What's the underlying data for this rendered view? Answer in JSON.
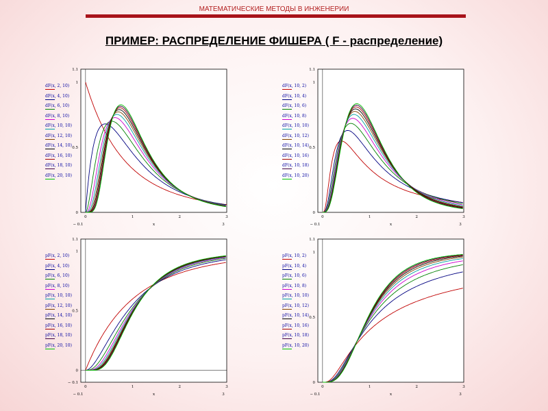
{
  "header": {
    "text": "МАТЕМАТИЧЕСКИЕ МЕТОДЫ В ИНЖЕНЕРИИ"
  },
  "title": {
    "text": "ПРИМЕР: РАСПРЕДЕЛЕНИЕ ФИШЕРА ( F - распределение)"
  },
  "colors": [
    "#c00000",
    "#000080",
    "#008000",
    "#cc00cc",
    "#00a0a0",
    "#804000",
    "#000000",
    "#a00000",
    "#400040",
    "#00c000"
  ],
  "chart_data": [
    {
      "type": "line",
      "function": "density",
      "x": [
        0,
        0.05,
        0.1,
        0.15,
        0.2,
        0.25,
        0.3,
        0.35,
        0.4,
        0.45,
        0.5,
        0.55,
        0.6,
        0.65,
        0.7,
        0.75,
        0.8,
        0.85,
        0.9,
        0.95,
        1,
        1.1,
        1.2,
        1.3,
        1.4,
        1.5,
        1.6,
        1.7,
        1.8,
        1.9,
        2,
        2.2,
        2.4,
        2.6,
        2.8,
        3
      ],
      "xlim": [
        -0.1,
        3
      ],
      "ylim": [
        0,
        1.1
      ],
      "x_ticks": [
        "0",
        "1",
        "2",
        "3"
      ],
      "x_tick_values": [
        0,
        1,
        2,
        3
      ],
      "x_extra": [
        "− 0.1",
        "x",
        "3"
      ],
      "y_ticks": [
        "1.1",
        "1",
        "0.5",
        "0"
      ],
      "y_tick_values": [
        1.1,
        1,
        0.5,
        0
      ],
      "series": [
        {
          "name": "dF(x, 2, 10)",
          "d1": 2,
          "d2": 10
        },
        {
          "name": "dF(x, 4, 10)",
          "d1": 4,
          "d2": 10
        },
        {
          "name": "dF(x, 6, 10)",
          "d1": 6,
          "d2": 10
        },
        {
          "name": "dF(x, 8, 10)",
          "d1": 8,
          "d2": 10
        },
        {
          "name": "dF(x, 10, 10)",
          "d1": 10,
          "d2": 10
        },
        {
          "name": "dF(x, 12, 10)",
          "d1": 12,
          "d2": 10
        },
        {
          "name": "dF(x, 14, 10)",
          "d1": 14,
          "d2": 10
        },
        {
          "name": "dF(x, 16, 10)",
          "d1": 16,
          "d2": 10
        },
        {
          "name": "dF(x, 18, 10)",
          "d1": 18,
          "d2": 10
        },
        {
          "name": "dF(x, 20, 10)",
          "d1": 20,
          "d2": 10
        }
      ]
    },
    {
      "type": "line",
      "function": "density",
      "x": [
        0,
        0.05,
        0.1,
        0.15,
        0.2,
        0.25,
        0.3,
        0.35,
        0.4,
        0.45,
        0.5,
        0.55,
        0.6,
        0.65,
        0.7,
        0.75,
        0.8,
        0.85,
        0.9,
        0.95,
        1,
        1.1,
        1.2,
        1.3,
        1.4,
        1.5,
        1.6,
        1.7,
        1.8,
        1.9,
        2,
        2.2,
        2.4,
        2.6,
        2.8,
        3
      ],
      "xlim": [
        -0.1,
        3
      ],
      "ylim": [
        0,
        1.1
      ],
      "x_ticks": [
        "0",
        "1",
        "2",
        "3"
      ],
      "x_tick_values": [
        0,
        1,
        2,
        3
      ],
      "x_extra": [
        "− 0.1",
        "x",
        "3"
      ],
      "y_ticks": [
        "1.1",
        "1",
        "0.5",
        "0"
      ],
      "y_tick_values": [
        1.1,
        1,
        0.5,
        0
      ],
      "series": [
        {
          "name": "dF(x, 10, 2)",
          "d1": 10,
          "d2": 2
        },
        {
          "name": "dF(x, 10, 4)",
          "d1": 10,
          "d2": 4
        },
        {
          "name": "dF(x, 10, 6)",
          "d1": 10,
          "d2": 6
        },
        {
          "name": "dF(x, 10, 8)",
          "d1": 10,
          "d2": 8
        },
        {
          "name": "dF(x, 10, 10)",
          "d1": 10,
          "d2": 10
        },
        {
          "name": "dF(x, 10, 12)",
          "d1": 10,
          "d2": 12
        },
        {
          "name": "dF(x, 10, 14)",
          "d1": 10,
          "d2": 14
        },
        {
          "name": "dF(x, 10, 16)",
          "d1": 10,
          "d2": 16
        },
        {
          "name": "dF(x, 10, 18)",
          "d1": 10,
          "d2": 18
        },
        {
          "name": "dF(x, 10, 20)",
          "d1": 10,
          "d2": 20
        }
      ]
    },
    {
      "type": "line",
      "function": "cdf",
      "x": [
        0,
        0.05,
        0.1,
        0.15,
        0.2,
        0.25,
        0.3,
        0.35,
        0.4,
        0.45,
        0.5,
        0.55,
        0.6,
        0.65,
        0.7,
        0.75,
        0.8,
        0.85,
        0.9,
        0.95,
        1,
        1.1,
        1.2,
        1.3,
        1.4,
        1.5,
        1.6,
        1.7,
        1.8,
        1.9,
        2,
        2.2,
        2.4,
        2.6,
        2.8,
        3
      ],
      "xlim": [
        -0.1,
        3
      ],
      "ylim": [
        -0.1,
        1.1
      ],
      "x_ticks": [
        "0",
        "1",
        "2",
        "3"
      ],
      "x_tick_values": [
        0,
        1,
        2,
        3
      ],
      "x_extra": [
        "− 0.1",
        "x",
        "3"
      ],
      "y_ticks": [
        "1.1",
        "1",
        "0.5",
        "0",
        "− 0.1"
      ],
      "y_tick_values": [
        1.1,
        1,
        0.5,
        0,
        -0.1
      ],
      "series": [
        {
          "name": "pF(x, 2, 10)",
          "d1": 2,
          "d2": 10
        },
        {
          "name": "pF(x, 4, 10)",
          "d1": 4,
          "d2": 10
        },
        {
          "name": "pF(x, 6, 10)",
          "d1": 6,
          "d2": 10
        },
        {
          "name": "pF(x, 8, 10)",
          "d1": 8,
          "d2": 10
        },
        {
          "name": "pF(x, 10, 10)",
          "d1": 10,
          "d2": 10
        },
        {
          "name": "pF(x, 12, 10)",
          "d1": 12,
          "d2": 10
        },
        {
          "name": "pF(x, 14, 10)",
          "d1": 14,
          "d2": 10
        },
        {
          "name": "pF(x, 16, 10)",
          "d1": 16,
          "d2": 10
        },
        {
          "name": "pF(x, 18, 10)",
          "d1": 18,
          "d2": 10
        },
        {
          "name": "pF(x, 20, 10)",
          "d1": 20,
          "d2": 10
        }
      ]
    },
    {
      "type": "line",
      "function": "cdf",
      "x": [
        0,
        0.05,
        0.1,
        0.15,
        0.2,
        0.25,
        0.3,
        0.35,
        0.4,
        0.45,
        0.5,
        0.55,
        0.6,
        0.65,
        0.7,
        0.75,
        0.8,
        0.85,
        0.9,
        0.95,
        1,
        1.1,
        1.2,
        1.3,
        1.4,
        1.5,
        1.6,
        1.7,
        1.8,
        1.9,
        2,
        2.2,
        2.4,
        2.6,
        2.8,
        3
      ],
      "xlim": [
        -0.1,
        3
      ],
      "ylim": [
        0,
        1.1
      ],
      "x_ticks": [
        "0",
        "1",
        "2",
        "3"
      ],
      "x_tick_values": [
        0,
        1,
        2,
        3
      ],
      "x_extra": [
        "− 0.1",
        "x",
        "3"
      ],
      "y_ticks": [
        "1.1",
        "1",
        "0.5",
        "0"
      ],
      "y_tick_values": [
        1.1,
        1,
        0.5,
        0
      ],
      "series": [
        {
          "name": "pF(x, 10, 2)",
          "d1": 10,
          "d2": 2
        },
        {
          "name": "pF(x, 10, 4)",
          "d1": 10,
          "d2": 4
        },
        {
          "name": "pF(x, 10, 6)",
          "d1": 10,
          "d2": 6
        },
        {
          "name": "pF(x, 10, 8)",
          "d1": 10,
          "d2": 8
        },
        {
          "name": "pF(x, 10, 10)",
          "d1": 10,
          "d2": 10
        },
        {
          "name": "pF(x, 10, 12)",
          "d1": 10,
          "d2": 12
        },
        {
          "name": "pF(x, 10, 14)",
          "d1": 10,
          "d2": 14
        },
        {
          "name": "pF(x, 10, 16)",
          "d1": 10,
          "d2": 16
        },
        {
          "name": "pF(x, 10, 18)",
          "d1": 10,
          "d2": 18
        },
        {
          "name": "pF(x, 10, 20)",
          "d1": 10,
          "d2": 20
        }
      ]
    }
  ]
}
